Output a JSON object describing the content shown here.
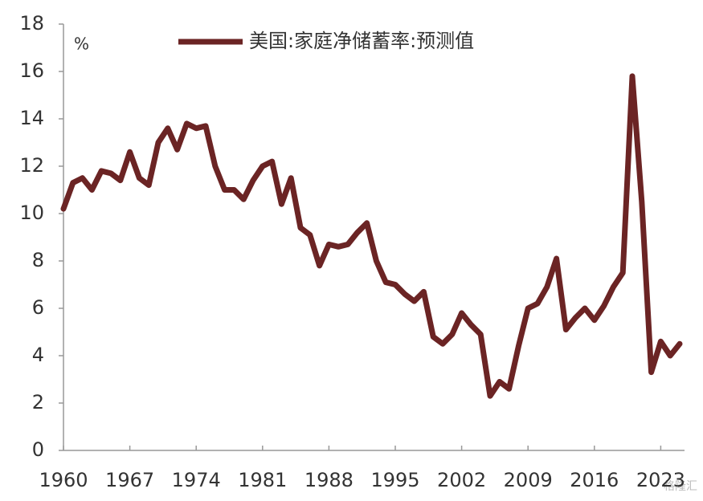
{
  "chart_data": {
    "type": "line",
    "y_unit_label": "%",
    "x": [
      1960,
      1961,
      1962,
      1963,
      1964,
      1965,
      1966,
      1967,
      1968,
      1969,
      1970,
      1971,
      1972,
      1973,
      1974,
      1975,
      1976,
      1977,
      1978,
      1979,
      1980,
      1981,
      1982,
      1983,
      1984,
      1985,
      1986,
      1987,
      1988,
      1989,
      1990,
      1991,
      1992,
      1993,
      1994,
      1995,
      1996,
      1997,
      1998,
      1999,
      2000,
      2001,
      2002,
      2003,
      2004,
      2005,
      2006,
      2007,
      2008,
      2009,
      2010,
      2011,
      2012,
      2013,
      2014,
      2015,
      2016,
      2017,
      2018,
      2019,
      2020,
      2021,
      2022,
      2023,
      2024,
      2025
    ],
    "series": [
      {
        "name": "美国:家庭净储蓄率:预测值",
        "color": "#6b2424",
        "values": [
          10.2,
          11.3,
          11.5,
          11.0,
          11.8,
          11.7,
          11.4,
          12.6,
          11.5,
          11.2,
          13.0,
          13.6,
          12.7,
          13.8,
          13.6,
          13.7,
          12.0,
          11.0,
          11.0,
          10.6,
          11.4,
          12.0,
          12.2,
          10.4,
          11.5,
          9.4,
          9.1,
          7.8,
          8.7,
          8.6,
          8.7,
          9.2,
          9.6,
          8.0,
          7.1,
          7.0,
          6.6,
          6.3,
          6.7,
          4.8,
          4.5,
          4.9,
          5.8,
          5.3,
          4.9,
          2.3,
          2.9,
          2.6,
          4.4,
          6.0,
          6.2,
          6.9,
          8.1,
          5.1,
          5.6,
          6.0,
          5.5,
          6.1,
          6.9,
          7.5,
          15.8,
          10.5,
          3.3,
          4.6,
          4.0,
          4.5
        ]
      }
    ],
    "xlim": [
      1960,
      2025
    ],
    "xticks": [
      1960,
      1967,
      1974,
      1981,
      1988,
      1995,
      2002,
      2009,
      2016,
      2023
    ],
    "ylim": [
      0,
      18
    ],
    "yticks": [
      0,
      2,
      4,
      6,
      8,
      10,
      12,
      14,
      16,
      18
    ],
    "grid": false,
    "legend": "top",
    "watermark": "格隆汇"
  }
}
